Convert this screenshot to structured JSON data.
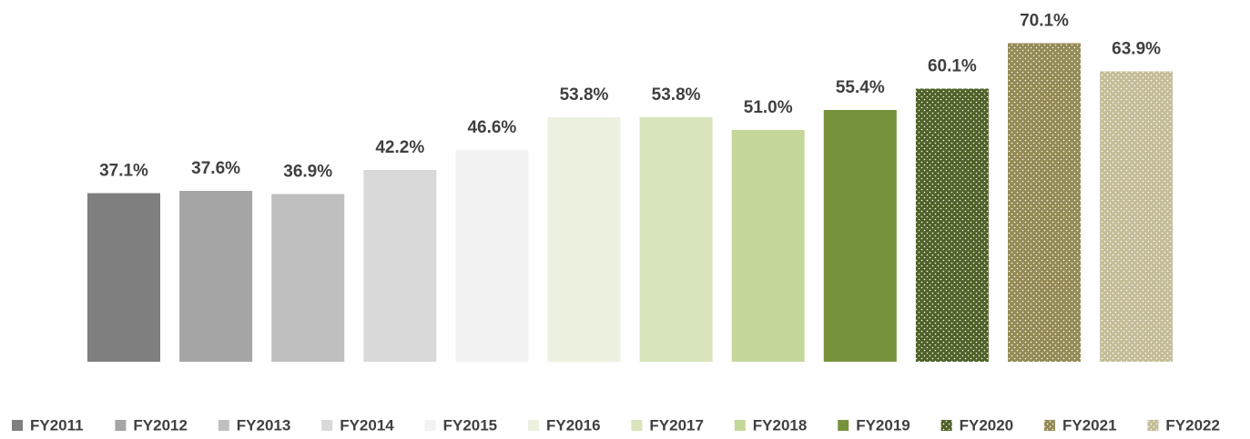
{
  "chart_data": {
    "type": "bar",
    "ylim": [
      0,
      80
    ],
    "series": [
      {
        "name": "FY2011",
        "color": "#7f7f7f",
        "values": [
          37.1
        ],
        "value_labels": [
          "37.1%"
        ]
      },
      {
        "name": "FY2012",
        "color": "#a5a5a5",
        "values": [
          37.6
        ],
        "value_labels": [
          "37.6%"
        ]
      },
      {
        "name": "FY2013",
        "color": "#bfbfbf",
        "values": [
          36.9
        ],
        "value_labels": [
          "36.9%"
        ]
      },
      {
        "name": "FY2014",
        "color": "#d9d9d9",
        "values": [
          42.2
        ],
        "value_labels": [
          "42.2%"
        ]
      },
      {
        "name": "FY2015",
        "color": "#f2f2f2",
        "values": [
          46.6
        ],
        "value_labels": [
          "46.6%"
        ]
      },
      {
        "name": "FY2016",
        "color": "#ebf1de",
        "values": [
          53.8
        ],
        "value_labels": [
          "53.8%"
        ]
      },
      {
        "name": "FY2017",
        "color": "#d8e4bc",
        "values": [
          53.8
        ],
        "value_labels": [
          "53.8%"
        ]
      },
      {
        "name": "FY2018",
        "color": "#c4d79b",
        "values": [
          51.0
        ],
        "value_labels": [
          "51.0%"
        ]
      },
      {
        "name": "FY2019",
        "color": "#76933c",
        "values": [
          55.4
        ],
        "value_labels": [
          "55.4%"
        ]
      },
      {
        "name": "FY2020",
        "color": "#4f6228",
        "pattern": "dots",
        "values": [
          60.1
        ],
        "value_labels": [
          "60.1%"
        ]
      },
      {
        "name": "FY2021",
        "color": "#948a54",
        "pattern": "dots",
        "values": [
          70.1
        ],
        "value_labels": [
          "70.1%"
        ]
      },
      {
        "name": "FY2022",
        "color": "#c4bd97",
        "pattern": "dots",
        "values": [
          63.9
        ],
        "value_labels": [
          "63.9%"
        ]
      }
    ],
    "legend": "bottom"
  }
}
